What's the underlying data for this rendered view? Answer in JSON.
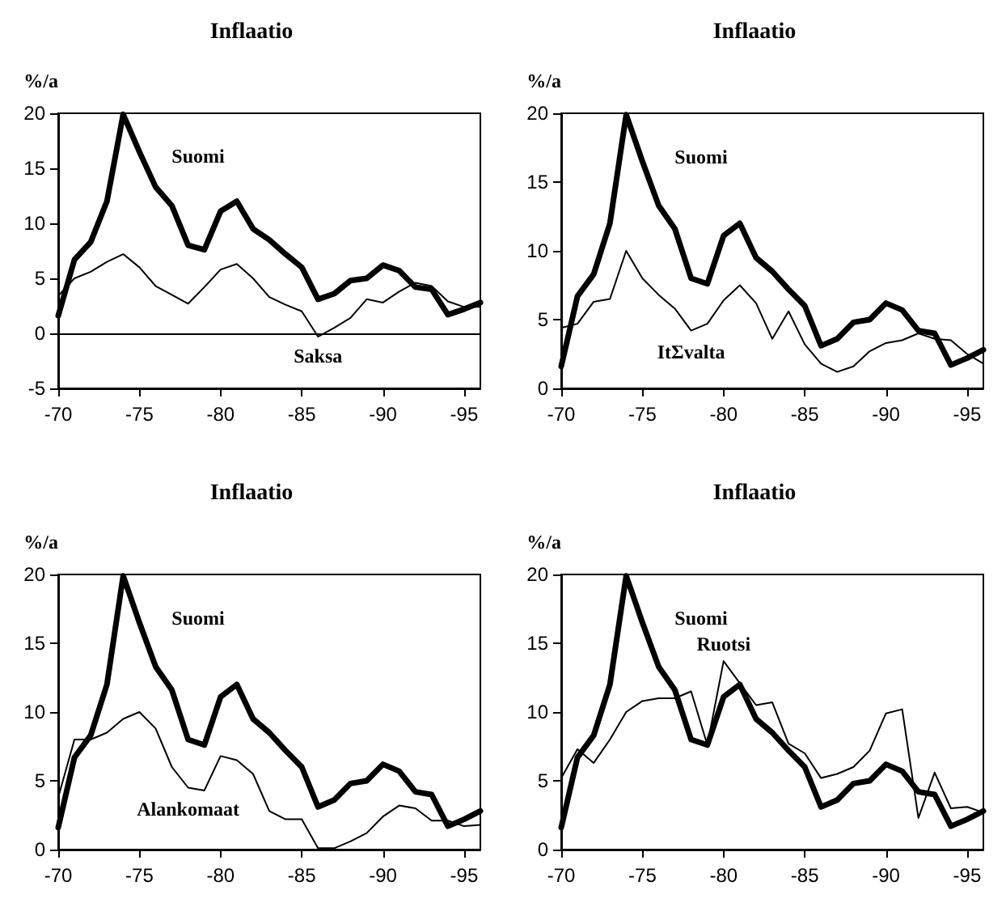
{
  "chart_data": [
    {
      "type": "line",
      "title": "Inflaatio",
      "ylabel": "%/a",
      "categories": [
        "-70",
        null,
        null,
        null,
        null,
        "-75",
        null,
        null,
        null,
        null,
        "-80",
        null,
        null,
        null,
        null,
        "-85",
        null,
        null,
        null,
        null,
        "-90",
        null,
        null,
        null,
        null,
        "-95",
        null
      ],
      "series": [
        {
          "name": "Suomi",
          "color": "#000000",
          "values": [
            1.6,
            6.7,
            8.3,
            12,
            19.9,
            16.5,
            13.3,
            11.6,
            8,
            7.6,
            11.1,
            12,
            9.5,
            8.5,
            7.2,
            6,
            3.1,
            3.6,
            4.8,
            5,
            6.2,
            5.7,
            4.2,
            4,
            1.7,
            2.2,
            2.8
          ]
        },
        {
          "name": "Saksa",
          "color": "#000000",
          "values": [
            3.4,
            5,
            5.6,
            6.5,
            7.2,
            6,
            4.3,
            3.5,
            2.7,
            4.2,
            5.8,
            6.3,
            5,
            3.3,
            2.6,
            2,
            -0.3,
            0.5,
            1.4,
            3.1,
            2.8,
            3.8,
            4.6,
            4.3,
            2.9,
            2.4,
            2.4
          ]
        }
      ],
      "ylim": [
        -5,
        20
      ],
      "yticks": [
        -5,
        0,
        5,
        10,
        15,
        20
      ],
      "ref_lines": [
        {
          "axis": "y",
          "value": 0
        }
      ],
      "grid": false,
      "marker": "none"
    },
    {
      "type": "line",
      "title": "Inflaatio",
      "ylabel": "%/a",
      "categories": [
        "-70",
        null,
        null,
        null,
        null,
        "-75",
        null,
        null,
        null,
        null,
        "-80",
        null,
        null,
        null,
        null,
        "-85",
        null,
        null,
        null,
        null,
        "-90",
        null,
        null,
        null,
        null,
        "-95",
        null
      ],
      "series": [
        {
          "name": "Suomi",
          "color": "#000000",
          "values": [
            1.6,
            6.7,
            8.3,
            12,
            19.9,
            16.5,
            13.3,
            11.6,
            8,
            7.6,
            11.1,
            12,
            9.5,
            8.5,
            7.2,
            6,
            3.1,
            3.6,
            4.8,
            5,
            6.2,
            5.7,
            4.2,
            4,
            1.7,
            2.2,
            2.8
          ]
        },
        {
          "name": "ItΣvalta",
          "color": "#000000",
          "values": [
            4.4,
            4.7,
            6.3,
            6.5,
            10,
            8,
            6.8,
            5.8,
            4.2,
            4.7,
            6.4,
            7.5,
            6.2,
            3.6,
            5.6,
            3.2,
            1.8,
            1.2,
            1.6,
            2.7,
            3.3,
            3.5,
            4,
            3.6,
            3.5,
            2.5,
            1.8
          ]
        }
      ],
      "ylim": [
        0,
        20
      ],
      "yticks": [
        0,
        5,
        10,
        15,
        20
      ],
      "grid": false,
      "marker": "none"
    },
    {
      "type": "line",
      "title": "Inflaatio",
      "ylabel": "%/a",
      "categories": [
        "-70",
        null,
        null,
        null,
        null,
        "-75",
        null,
        null,
        null,
        null,
        "-80",
        null,
        null,
        null,
        null,
        "-85",
        null,
        null,
        null,
        null,
        "-90",
        null,
        null,
        null,
        null,
        "-95",
        null
      ],
      "series": [
        {
          "name": "Suomi",
          "color": "#000000",
          "values": [
            1.6,
            6.7,
            8.3,
            12,
            19.9,
            16.5,
            13.3,
            11.6,
            8,
            7.6,
            11.1,
            12,
            9.5,
            8.5,
            7.2,
            6,
            3.1,
            3.6,
            4.8,
            5,
            6.2,
            5.7,
            4.2,
            4,
            1.7,
            2.2,
            2.8
          ]
        },
        {
          "name": "Alankomaat",
          "color": "#000000",
          "values": [
            3.8,
            8,
            8,
            8.5,
            9.5,
            10,
            8.8,
            6,
            4.5,
            4.3,
            6.8,
            6.5,
            5.5,
            2.8,
            2.2,
            2.2,
            0.1,
            0.1,
            0.6,
            1.2,
            2.4,
            3.2,
            3,
            2.1,
            2.1,
            1.7,
            1.8
          ]
        }
      ],
      "ylim": [
        0,
        20
      ],
      "yticks": [
        0,
        5,
        10,
        15,
        20
      ],
      "grid": false,
      "marker": "none"
    },
    {
      "type": "line",
      "title": "Inflaatio",
      "ylabel": "%/a",
      "categories": [
        "-70",
        null,
        null,
        null,
        null,
        "-75",
        null,
        null,
        null,
        null,
        "-80",
        null,
        null,
        null,
        null,
        "-85",
        null,
        null,
        null,
        null,
        "-90",
        null,
        null,
        null,
        null,
        "-95",
        null
      ],
      "series": [
        {
          "name": "Suomi",
          "color": "#000000",
          "values": [
            1.6,
            6.7,
            8.3,
            12,
            19.9,
            16.5,
            13.3,
            11.6,
            8,
            7.6,
            11.1,
            12,
            9.5,
            8.5,
            7.2,
            6,
            3.1,
            3.6,
            4.8,
            5,
            6.2,
            5.7,
            4.2,
            4,
            1.7,
            2.2,
            2.8
          ]
        },
        {
          "name": "Ruotsi",
          "color": "#000000",
          "values": [
            5.2,
            7.3,
            6.3,
            8,
            10,
            10.8,
            11,
            11,
            11.5,
            7.6,
            13.7,
            12.1,
            10.5,
            10.7,
            7.7,
            7,
            5.2,
            5.5,
            6,
            7.2,
            9.9,
            10.2,
            2.3,
            5.6,
            3,
            3.1,
            2.7
          ]
        }
      ],
      "ylim": [
        0,
        20
      ],
      "yticks": [
        0,
        5,
        10,
        15,
        20
      ],
      "grid": false,
      "marker": "none"
    }
  ]
}
